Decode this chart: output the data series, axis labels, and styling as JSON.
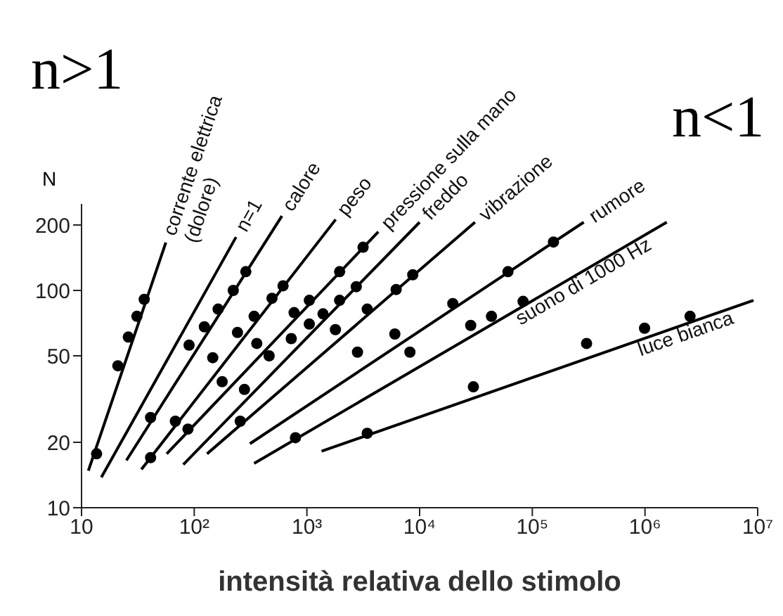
{
  "chart_data": {
    "type": "line",
    "xlabel": "intensità relativa dello stimolo",
    "ylabel": "N",
    "annotations": [
      "n>1",
      "n<1"
    ],
    "log": "xy",
    "xlim": [
      10,
      10000000
    ],
    "xticks": [
      10,
      {
        "value": 100,
        "label": "10²"
      },
      {
        "value": 1000,
        "label": "10³"
      },
      {
        "value": 10000,
        "label": "10⁴"
      },
      {
        "value": 100000,
        "label": "10⁵"
      },
      {
        "value": 1000000,
        "label": "10⁶"
      },
      {
        "value": 10000000,
        "label": "10⁷"
      }
    ],
    "ylim": [
      10,
      250
    ],
    "yticks": [
      10,
      20,
      50,
      100,
      200
    ],
    "series": [
      {
        "name": "corrente elettrica (dolore)",
        "color": "#000000",
        "x": [
          11.5,
          56
        ],
        "values": [
          14.8,
          166
        ]
      },
      {
        "type": "scatter",
        "marker": "circle",
        "color": "#000000",
        "x": [
          13.6,
          21,
          26,
          31,
          36
        ],
        "values": [
          17.7,
          45,
          61,
          76,
          91
        ]
      },
      {
        "name": "n=1",
        "color": "#000000",
        "x": [
          15,
          235
        ],
        "values": [
          13.8,
          176
        ]
      },
      {
        "name": "calore",
        "color": "#000000",
        "x": [
          25,
          600
        ],
        "values": [
          16.5,
          220
        ]
      },
      {
        "type": "scatter",
        "marker": "circle",
        "color": "#000000",
        "x": [
          41,
          90,
          123,
          163,
          222,
          287
        ],
        "values": [
          26,
          56,
          68,
          82,
          100,
          122
        ]
      },
      {
        "name": "peso",
        "color": "#000000",
        "x": [
          34,
          1800
        ],
        "values": [
          15,
          212
        ]
      },
      {
        "type": "scatter",
        "marker": "circle",
        "color": "#000000",
        "x": [
          41,
          68,
          146,
          242,
          340,
          490,
          614
        ],
        "values": [
          17,
          25,
          49,
          64,
          76,
          92,
          105
        ]
      },
      {
        "name": "pressione sulla mano",
        "color": "#000000",
        "x": [
          57,
          4300
        ],
        "values": [
          17.7,
          186
        ]
      },
      {
        "type": "scatter",
        "marker": "circle",
        "color": "#000000",
        "x": [
          88,
          177,
          359,
          770,
          1050,
          1950,
          3150
        ],
        "values": [
          23,
          38,
          57,
          79,
          90,
          122,
          158
        ]
      },
      {
        "name": "freddo",
        "color": "#000000",
        "x": [
          80,
          10000
        ],
        "values": [
          15.8,
          206
        ]
      },
      {
        "type": "scatter",
        "marker": "circle",
        "color": "#000000",
        "x": [
          279,
          462,
          726,
          1050,
          1390,
          1950,
          2740
        ],
        "values": [
          35,
          50,
          60,
          70,
          78,
          90,
          104
        ]
      },
      {
        "name": "vibrazione",
        "color": "#000000",
        "x": [
          130,
          31000
        ],
        "values": [
          17.7,
          206
        ]
      },
      {
        "type": "scatter",
        "marker": "circle",
        "color": "#000000",
        "x": [
          256,
          1790,
          3430,
          6190,
          8690
        ],
        "values": [
          25,
          66,
          82,
          101,
          118
        ]
      },
      {
        "name": "rumore",
        "color": "#000000",
        "x": [
          312,
          286000
        ],
        "values": [
          19.7,
          206
        ]
      },
      {
        "type": "scatter",
        "marker": "circle",
        "color": "#000000",
        "x": [
          2810,
          6030,
          19700,
          60800,
          154000
        ],
        "values": [
          52,
          63,
          87,
          122,
          167
        ]
      },
      {
        "name": "suono di 1000 Hz",
        "color": "#000000",
        "x": [
          340,
          1560000
        ],
        "values": [
          16,
          206
        ]
      },
      {
        "type": "scatter",
        "marker": "circle",
        "color": "#000000",
        "x": [
          791,
          8200,
          28400,
          43400,
          82800
        ],
        "values": [
          21,
          52,
          69,
          76,
          89
        ]
      },
      {
        "name": "luce bianca",
        "color": "#000000",
        "x": [
          1350,
          9180000
        ],
        "values": [
          18.2,
          90
        ]
      },
      {
        "type": "scatter",
        "marker": "circle",
        "color": "#000000",
        "x": [
          3430,
          30000,
          303000,
          991000,
          2510000
        ],
        "values": [
          22,
          36,
          57,
          67,
          76
        ]
      }
    ]
  }
}
